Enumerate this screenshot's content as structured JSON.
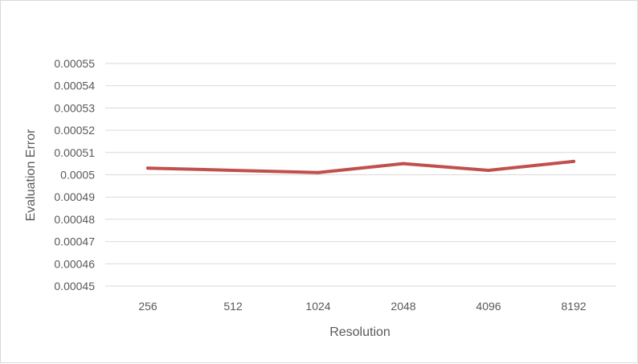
{
  "chart_data": {
    "type": "line",
    "title": "",
    "xlabel": "Resolution",
    "ylabel": "Evaluation Error",
    "categories": [
      "256",
      "512",
      "1024",
      "2048",
      "4096",
      "8192"
    ],
    "series": [
      {
        "values": [
          0.000503,
          0.000502,
          0.000501,
          0.000505,
          0.000502,
          0.000506
        ],
        "color": "#c0504d"
      }
    ],
    "ylim": [
      0.00045,
      0.00055
    ],
    "yticks": [
      "0.00045",
      "0.00046",
      "0.00047",
      "0.00048",
      "0.00049",
      "0.0005",
      "0.00051",
      "0.00052",
      "0.00053",
      "0.00054",
      "0.00055"
    ],
    "grid": true,
    "legend": "none",
    "gridColor": "#d9d9d9",
    "tickColor": "#595959"
  }
}
